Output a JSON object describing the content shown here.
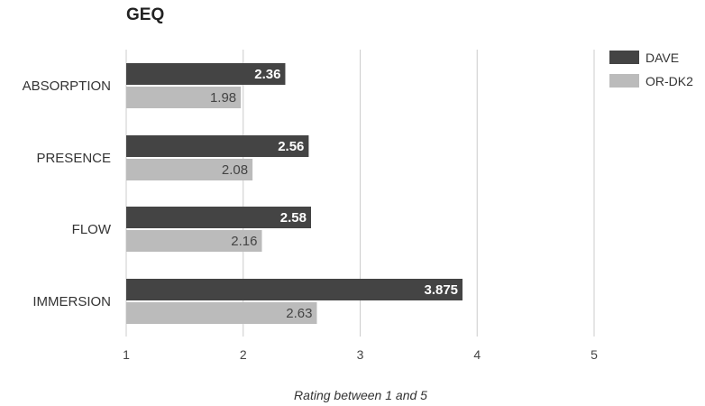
{
  "chart_data": {
    "type": "bar",
    "orientation": "horizontal",
    "title": "GEQ",
    "xlabel": "Rating between 1 and 5",
    "ylabel": "",
    "xlim": [
      1,
      5
    ],
    "ticks": [
      "1",
      "2",
      "3",
      "4",
      "5"
    ],
    "grid": true,
    "legend_position": "top-right",
    "categories": [
      "ABSORPTION",
      "PRESENCE",
      "FLOW",
      "IMMERSION"
    ],
    "series": [
      {
        "name": "DAVE",
        "color": "#444444",
        "label_color": "#ffffff",
        "values": [
          2.36,
          2.56,
          2.58,
          3.875
        ],
        "labels": [
          "2.36",
          "2.56",
          "2.58",
          "3.875"
        ]
      },
      {
        "name": "OR-DK2",
        "color": "#bbbbbb",
        "label_color": "#444444",
        "values": [
          1.98,
          2.08,
          2.16,
          2.63
        ],
        "labels": [
          "1.98",
          "2.08",
          "2.16",
          "2.63"
        ]
      }
    ]
  }
}
